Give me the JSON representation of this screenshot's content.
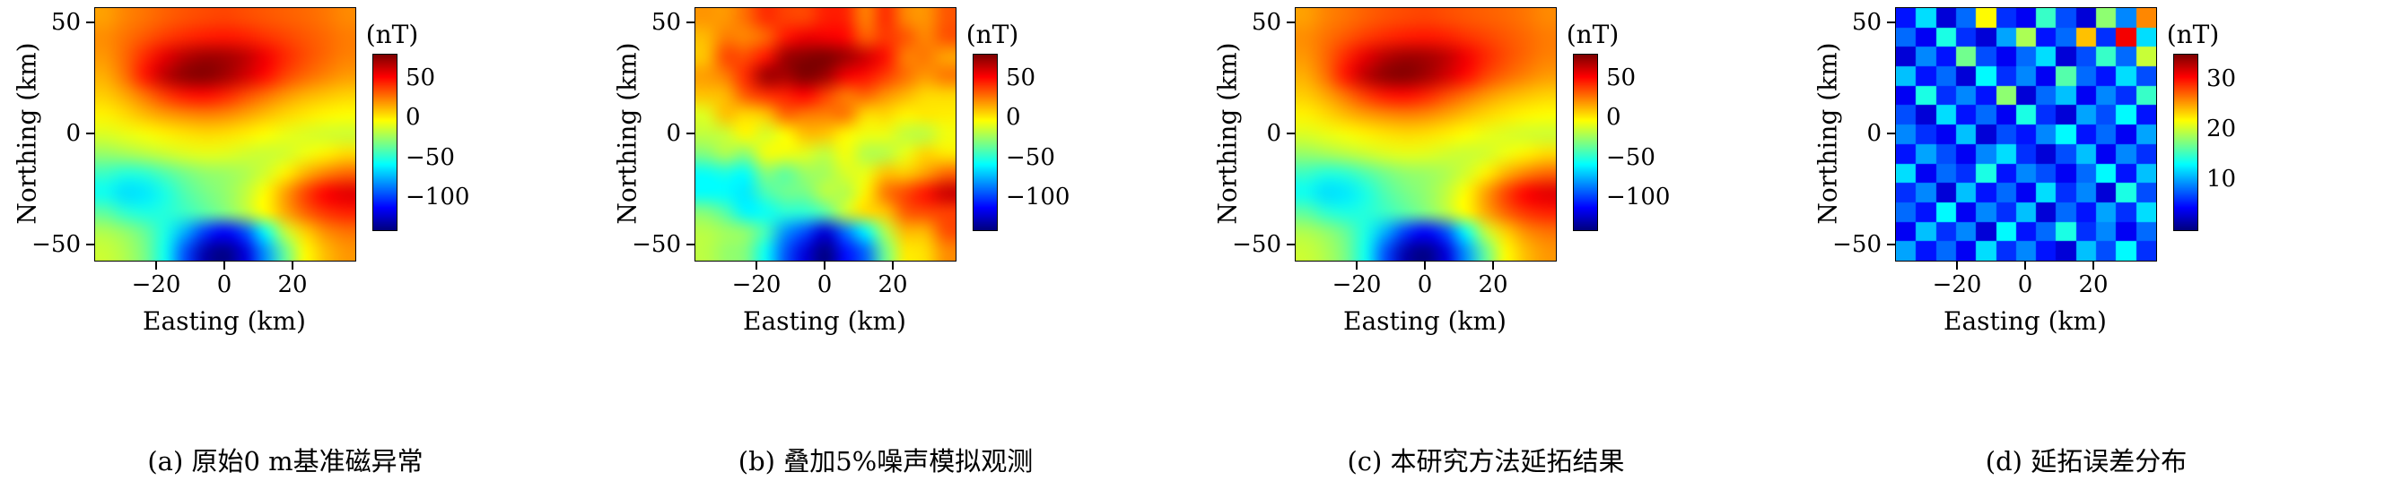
{
  "figure": {
    "background": "#ffffff",
    "panels": [
      {
        "id": "a",
        "ylabel": "Northing (km)",
        "xlabel": "Easting (km)",
        "yticks": [
          "50",
          "0",
          "−50"
        ],
        "xticks": [
          "−20",
          "0",
          "20"
        ],
        "colorbar_label": "(nT)",
        "colorbar_ticks": [
          "50",
          "0",
          "−50",
          "−100"
        ],
        "caption": "(a) 原始0 m基准磁异常"
      },
      {
        "id": "b",
        "ylabel": "Northing (km)",
        "xlabel": "Easting (km)",
        "yticks": [
          "50",
          "0",
          "−50"
        ],
        "xticks": [
          "−20",
          "0",
          "20"
        ],
        "colorbar_label": "(nT)",
        "colorbar_ticks": [
          "50",
          "0",
          "−50",
          "−100"
        ],
        "caption": "(b) 叠加5%噪声模拟观测"
      },
      {
        "id": "c",
        "ylabel": "Northing (km)",
        "xlabel": "Easting (km)",
        "yticks": [
          "50",
          "0",
          "−50"
        ],
        "xticks": [
          "−20",
          "0",
          "20"
        ],
        "colorbar_label": "(nT)",
        "colorbar_ticks": [
          "50",
          "0",
          "−50",
          "−100"
        ],
        "caption": "(c) 本研究方法延拓结果"
      },
      {
        "id": "d",
        "ylabel": "Northing (km)",
        "xlabel": "Easting (km)",
        "yticks": [
          "50",
          "0",
          "−50"
        ],
        "xticks": [
          "−20",
          "0",
          "20"
        ],
        "colorbar_label": "(nT)",
        "colorbar_ticks": [
          "30",
          "20",
          "10"
        ],
        "caption": "(d) 延拓误差分布"
      }
    ]
  },
  "chart_data": [
    {
      "type": "heatmap",
      "title": "(a) 原始0 m基准磁异常",
      "xlabel": "Easting (km)",
      "ylabel": "Northing (km)",
      "colormap": "jet",
      "smooth": true,
      "x": [
        -36,
        -30,
        -24,
        -18,
        -12,
        -6,
        0,
        6,
        12,
        18,
        24,
        30,
        36
      ],
      "y": [
        54,
        45,
        36,
        27,
        18,
        9,
        0,
        -9,
        -18,
        -27,
        -36,
        -45,
        -54
      ],
      "xticks": [
        -20,
        0,
        20
      ],
      "yticks": [
        50,
        0,
        -50
      ],
      "zlim": [
        -140,
        80
      ],
      "colorbar_ticks": [
        50,
        0,
        -50,
        -100
      ],
      "colorbar_label": "(nT)",
      "values": [
        [
          18,
          24,
          28,
          32,
          35,
          37,
          38,
          36,
          34,
          32,
          30,
          27,
          23
        ],
        [
          22,
          28,
          34,
          40,
          44,
          47,
          48,
          46,
          42,
          38,
          34,
          30,
          26
        ],
        [
          20,
          30,
          44,
          58,
          68,
          73,
          72,
          66,
          55,
          44,
          36,
          30,
          25
        ],
        [
          15,
          28,
          48,
          66,
          76,
          78,
          72,
          62,
          50,
          38,
          30,
          24,
          19
        ],
        [
          8,
          16,
          28,
          40,
          48,
          50,
          45,
          36,
          28,
          20,
          14,
          10,
          7
        ],
        [
          0,
          5,
          12,
          18,
          22,
          24,
          22,
          17,
          11,
          6,
          2,
          -1,
          -3
        ],
        [
          -10,
          -7,
          -4,
          0,
          3,
          5,
          4,
          1,
          -3,
          -7,
          -10,
          -12,
          -13
        ],
        [
          -25,
          -22,
          -18,
          -14,
          -10,
          -8,
          -9,
          -12,
          -14,
          -12,
          -6,
          0,
          5
        ],
        [
          -45,
          -50,
          -48,
          -40,
          -32,
          -26,
          -24,
          -20,
          -12,
          0,
          14,
          24,
          30
        ],
        [
          -55,
          -64,
          -62,
          -52,
          -40,
          -32,
          -26,
          -16,
          -2,
          18,
          38,
          52,
          58
        ],
        [
          -38,
          -48,
          -52,
          -50,
          -45,
          -38,
          -30,
          -18,
          -2,
          16,
          32,
          42,
          46
        ],
        [
          -20,
          -26,
          -36,
          -52,
          -75,
          -100,
          -112,
          -95,
          -55,
          -15,
          8,
          22,
          28
        ],
        [
          -14,
          -20,
          -32,
          -55,
          -95,
          -130,
          -138,
          -120,
          -80,
          -35,
          -2,
          12,
          20
        ]
      ]
    },
    {
      "type": "heatmap",
      "title": "(b) 叠加5%噪声模拟观测",
      "xlabel": "Easting (km)",
      "ylabel": "Northing (km)",
      "colormap": "jet",
      "smooth": true,
      "noise_pct": 5,
      "noise_seed": 7,
      "x": [
        -36,
        -30,
        -24,
        -18,
        -12,
        -6,
        0,
        6,
        12,
        18,
        24,
        30,
        36
      ],
      "y": [
        54,
        45,
        36,
        27,
        18,
        9,
        0,
        -9,
        -18,
        -27,
        -36,
        -45,
        -54
      ],
      "xticks": [
        -20,
        0,
        20
      ],
      "yticks": [
        50,
        0,
        -50
      ],
      "zlim": [
        -140,
        80
      ],
      "colorbar_ticks": [
        50,
        0,
        -50,
        -100
      ],
      "colorbar_label": "(nT)",
      "values": [
        [
          18,
          24,
          28,
          32,
          35,
          37,
          38,
          36,
          34,
          32,
          30,
          27,
          23
        ],
        [
          22,
          28,
          34,
          40,
          44,
          47,
          48,
          46,
          42,
          38,
          34,
          30,
          26
        ],
        [
          20,
          30,
          44,
          58,
          68,
          73,
          72,
          66,
          55,
          44,
          36,
          30,
          25
        ],
        [
          15,
          28,
          48,
          66,
          76,
          78,
          72,
          62,
          50,
          38,
          30,
          24,
          19
        ],
        [
          8,
          16,
          28,
          40,
          48,
          50,
          45,
          36,
          28,
          20,
          14,
          10,
          7
        ],
        [
          0,
          5,
          12,
          18,
          22,
          24,
          22,
          17,
          11,
          6,
          2,
          -1,
          -3
        ],
        [
          -10,
          -7,
          -4,
          0,
          3,
          5,
          4,
          1,
          -3,
          -7,
          -10,
          -12,
          -13
        ],
        [
          -25,
          -22,
          -18,
          -14,
          -10,
          -8,
          -9,
          -12,
          -14,
          -12,
          -6,
          0,
          5
        ],
        [
          -45,
          -50,
          -48,
          -40,
          -32,
          -26,
          -24,
          -20,
          -12,
          0,
          14,
          24,
          30
        ],
        [
          -55,
          -64,
          -62,
          -52,
          -40,
          -32,
          -26,
          -16,
          -2,
          18,
          38,
          52,
          58
        ],
        [
          -38,
          -48,
          -52,
          -50,
          -45,
          -38,
          -30,
          -18,
          -2,
          16,
          32,
          42,
          46
        ],
        [
          -20,
          -26,
          -36,
          -52,
          -75,
          -100,
          -112,
          -95,
          -55,
          -15,
          8,
          22,
          28
        ],
        [
          -14,
          -20,
          -32,
          -55,
          -95,
          -130,
          -138,
          -120,
          -80,
          -35,
          -2,
          12,
          20
        ]
      ]
    },
    {
      "type": "heatmap",
      "title": "(c) 本研究方法延拓结果",
      "xlabel": "Easting (km)",
      "ylabel": "Northing (km)",
      "colormap": "jet",
      "smooth": true,
      "x": [
        -36,
        -30,
        -24,
        -18,
        -12,
        -6,
        0,
        6,
        12,
        18,
        24,
        30,
        36
      ],
      "y": [
        54,
        45,
        36,
        27,
        18,
        9,
        0,
        -9,
        -18,
        -27,
        -36,
        -45,
        -54
      ],
      "xticks": [
        -20,
        0,
        20
      ],
      "yticks": [
        50,
        0,
        -50
      ],
      "zlim": [
        -140,
        80
      ],
      "colorbar_ticks": [
        50,
        0,
        -50,
        -100
      ],
      "colorbar_label": "(nT)",
      "values": [
        [
          18,
          24,
          28,
          32,
          35,
          37,
          38,
          36,
          34,
          32,
          30,
          27,
          23
        ],
        [
          22,
          28,
          34,
          40,
          44,
          47,
          48,
          46,
          42,
          38,
          34,
          30,
          26
        ],
        [
          20,
          30,
          44,
          58,
          68,
          73,
          72,
          66,
          55,
          44,
          36,
          30,
          25
        ],
        [
          15,
          28,
          48,
          66,
          76,
          78,
          72,
          62,
          50,
          38,
          30,
          24,
          19
        ],
        [
          8,
          16,
          28,
          40,
          48,
          50,
          45,
          36,
          28,
          20,
          14,
          10,
          7
        ],
        [
          0,
          5,
          12,
          18,
          22,
          24,
          22,
          17,
          11,
          6,
          2,
          -1,
          -3
        ],
        [
          -10,
          -7,
          -4,
          0,
          3,
          5,
          4,
          1,
          -3,
          -7,
          -10,
          -12,
          -13
        ],
        [
          -25,
          -22,
          -18,
          -14,
          -10,
          -8,
          -9,
          -12,
          -14,
          -12,
          -6,
          0,
          5
        ],
        [
          -45,
          -50,
          -48,
          -40,
          -32,
          -26,
          -24,
          -20,
          -12,
          0,
          14,
          24,
          30
        ],
        [
          -55,
          -64,
          -62,
          -52,
          -40,
          -32,
          -26,
          -16,
          -2,
          18,
          38,
          52,
          58
        ],
        [
          -38,
          -48,
          -52,
          -50,
          -45,
          -38,
          -30,
          -18,
          -2,
          16,
          32,
          42,
          46
        ],
        [
          -20,
          -26,
          -36,
          -52,
          -75,
          -100,
          -112,
          -95,
          -55,
          -15,
          8,
          22,
          28
        ],
        [
          -14,
          -20,
          -32,
          -55,
          -95,
          -130,
          -138,
          -120,
          -80,
          -35,
          -2,
          12,
          20
        ]
      ]
    },
    {
      "type": "heatmap",
      "title": "(d) 延拓误差分布",
      "xlabel": "Easting (km)",
      "ylabel": "Northing (km)",
      "colormap": "jet",
      "smooth": false,
      "x": [
        -36,
        -30,
        -24,
        -18,
        -12,
        -6,
        0,
        6,
        12,
        18,
        24,
        30,
        36
      ],
      "y": [
        54,
        45,
        36,
        27,
        18,
        9,
        0,
        -9,
        -18,
        -27,
        -36,
        -45,
        -54
      ],
      "xticks": [
        -20,
        0,
        20
      ],
      "yticks": [
        50,
        0,
        -50
      ],
      "zlim": [
        0,
        35
      ],
      "colorbar_ticks": [
        30,
        20,
        10
      ],
      "colorbar_label": "(nT)",
      "values": [
        [
          5,
          12,
          3,
          8,
          22,
          6,
          4,
          15,
          7,
          3,
          18,
          9,
          26
        ],
        [
          8,
          4,
          14,
          6,
          3,
          10,
          19,
          5,
          8,
          24,
          6,
          31,
          12
        ],
        [
          3,
          9,
          5,
          17,
          7,
          4,
          8,
          12,
          3,
          7,
          15,
          8,
          20
        ],
        [
          11,
          5,
          8,
          3,
          13,
          6,
          9,
          4,
          16,
          8,
          5,
          12,
          7
        ],
        [
          4,
          14,
          6,
          9,
          5,
          18,
          3,
          8,
          11,
          4,
          9,
          6,
          15
        ],
        [
          7,
          3,
          12,
          5,
          8,
          4,
          14,
          6,
          3,
          10,
          7,
          13,
          5
        ],
        [
          9,
          6,
          4,
          11,
          3,
          7,
          5,
          9,
          13,
          5,
          8,
          4,
          10
        ],
        [
          5,
          10,
          7,
          4,
          9,
          12,
          6,
          3,
          7,
          11,
          4,
          9,
          6
        ],
        [
          12,
          4,
          8,
          6,
          14,
          5,
          9,
          7,
          4,
          8,
          13,
          5,
          11
        ],
        [
          6,
          9,
          3,
          11,
          5,
          8,
          4,
          12,
          6,
          9,
          3,
          14,
          7
        ],
        [
          8,
          5,
          13,
          4,
          9,
          6,
          11,
          3,
          8,
          5,
          10,
          6,
          12
        ],
        [
          4,
          11,
          6,
          9,
          3,
          13,
          5,
          8,
          14,
          6,
          9,
          4,
          8
        ],
        [
          10,
          5,
          8,
          4,
          12,
          6,
          9,
          5,
          3,
          11,
          7,
          13,
          6
        ]
      ]
    }
  ]
}
